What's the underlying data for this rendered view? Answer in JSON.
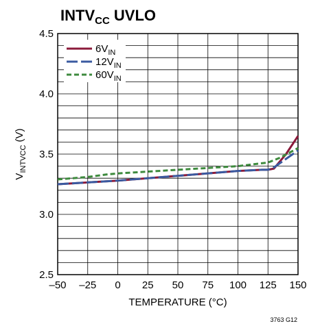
{
  "chart_data": {
    "type": "line",
    "title": "INTV",
    "title_sub": "CC",
    "title_rest": " UVLO",
    "xlabel": "TEMPERATURE (°C)",
    "ylabel_main": "V",
    "ylabel_sub": "INTVCC",
    "ylabel_rest": " (V)",
    "xlim": [
      -50,
      150
    ],
    "ylim": [
      2.5,
      4.5
    ],
    "xticks": [
      -50,
      -25,
      0,
      25,
      50,
      75,
      100,
      125,
      150
    ],
    "xtick_labels": [
      "–50",
      "–25",
      "0",
      "25",
      "50",
      "75",
      "100",
      "125",
      "150"
    ],
    "yticks": [
      2.5,
      3.0,
      3.5,
      4.0,
      4.5
    ],
    "ytick_labels": [
      "2.5",
      "3.0",
      "3.5",
      "4.0",
      "4.5"
    ],
    "grid": true,
    "legend_position": "top-left",
    "series": [
      {
        "name": "6V",
        "name_sub": "IN",
        "color": "#8b1a3a",
        "dash": "solid",
        "x": [
          -50,
          0,
          50,
          100,
          120,
          125,
          130,
          140,
          150
        ],
        "y": [
          3.25,
          3.28,
          3.32,
          3.36,
          3.37,
          3.37,
          3.38,
          3.5,
          3.65
        ]
      },
      {
        "name": "12V",
        "name_sub": "IN",
        "color": "#3a5aa0",
        "dash": "long",
        "x": [
          -50,
          0,
          50,
          100,
          120,
          125,
          130,
          140,
          150
        ],
        "y": [
          3.25,
          3.28,
          3.32,
          3.36,
          3.37,
          3.37,
          3.39,
          3.46,
          3.53
        ]
      },
      {
        "name": "60V",
        "name_sub": "IN",
        "color": "#3d8a3d",
        "dash": "short",
        "x": [
          -50,
          -25,
          -10,
          0,
          50,
          100,
          125,
          135,
          150
        ],
        "y": [
          3.29,
          3.31,
          3.33,
          3.34,
          3.37,
          3.4,
          3.43,
          3.47,
          3.55
        ]
      }
    ],
    "figure_code": "3763 G12"
  }
}
